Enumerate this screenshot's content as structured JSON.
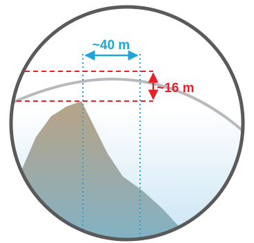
{
  "diagram": {
    "horizontal_measure": {
      "label": "~40 m",
      "color": "#1ea6dc"
    },
    "vertical_measure": {
      "label": "~16 m",
      "color": "#e8202a"
    },
    "colors": {
      "border": "#5a5a5a",
      "curve": "#b9b9bd",
      "mountain_top": "#b3a48c",
      "mountain_bottom": "#7fb3c9",
      "sky_top": "#ffffff",
      "sky_bottom": "#c9e4f3"
    }
  }
}
